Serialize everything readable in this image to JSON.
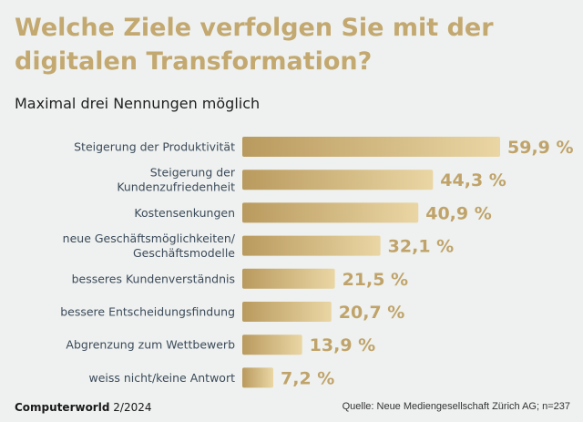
{
  "chart_data": {
    "type": "bar",
    "orientation": "horizontal",
    "title_line1": "Welche Ziele verfolgen Sie mit der",
    "title_line2": "digitalen Transformation?",
    "subtitle": "Maximal drei Nennungen möglich",
    "categories": [
      [
        "Steigerung der Produktivität"
      ],
      [
        "Steigerung der",
        "Kundenzufriedenheit"
      ],
      [
        "Kostensenkungen"
      ],
      [
        "neue Geschäftsmöglichkeiten/",
        "Geschäftsmodelle"
      ],
      [
        "besseres Kundenverständnis"
      ],
      [
        "bessere Entscheidungsfindung"
      ],
      [
        "Abgrenzung zum Wettbewerb"
      ],
      [
        "weiss nicht/keine Antwort"
      ]
    ],
    "values": [
      59.9,
      44.3,
      40.9,
      32.1,
      21.5,
      20.7,
      13.9,
      7.2
    ],
    "value_labels": [
      "59,9 %",
      "44,3 %",
      "40,9 %",
      "32,1 %",
      "21,5 %",
      "20,7 %",
      "13,9 %",
      "7,2 %"
    ],
    "xlim": [
      0,
      59.9
    ],
    "unit": "%"
  },
  "footer": {
    "brand": "Computerworld",
    "issue": "2/2024",
    "source": "Quelle: Neue Mediengesellschaft Zürich AG; n=237"
  },
  "colors": {
    "title": "#c3a870",
    "bar_start": "#b99a5e",
    "bar_end": "#ead6a4",
    "value_label": "#c0a36a",
    "category_label": "#3c4a5a"
  }
}
